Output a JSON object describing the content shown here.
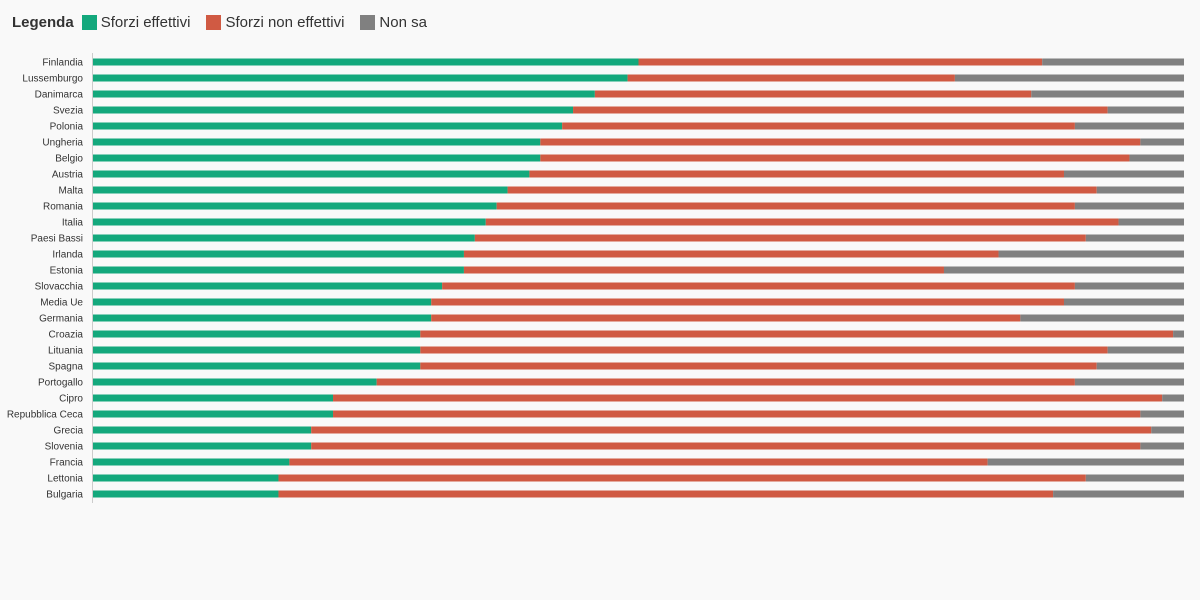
{
  "legend": {
    "title": "Legenda",
    "items": [
      {
        "label": "Sforzi effettivi",
        "color": "#13a87c"
      },
      {
        "label": "Sforzi non effettivi",
        "color": "#d05a43"
      },
      {
        "label": "Non sa",
        "color": "#808080"
      }
    ]
  },
  "chart_data": {
    "type": "bar",
    "orientation": "horizontal",
    "stacked": true,
    "xlim": [
      0,
      100
    ],
    "categories": [
      "Finlandia",
      "Lussemburgo",
      "Danimarca",
      "Svezia",
      "Polonia",
      "Ungheria",
      "Belgio",
      "Austria",
      "Malta",
      "Romania",
      "Italia",
      "Paesi Bassi",
      "Irlanda",
      "Estonia",
      "Slovacchia",
      "Media Ue",
      "Germania",
      "Croazia",
      "Lituania",
      "Spagna",
      "Portogallo",
      "Cipro",
      "Repubblica Ceca",
      "Grecia",
      "Slovenia",
      "Francia",
      "Lettonia",
      "Bulgaria"
    ],
    "series": [
      {
        "name": "Sforzi effettivi",
        "color": "#13a87c",
        "values": [
          50,
          49,
          46,
          44,
          43,
          41,
          41,
          40,
          38,
          37,
          36,
          35,
          34,
          34,
          32,
          31,
          31,
          30,
          30,
          30,
          26,
          22,
          22,
          20,
          20,
          18,
          17,
          17
        ]
      },
      {
        "name": "Sforzi non effettivi",
        "color": "#d05a43",
        "values": [
          37,
          30,
          40,
          49,
          47,
          55,
          54,
          49,
          54,
          53,
          58,
          56,
          49,
          44,
          58,
          58,
          54,
          69,
          63,
          62,
          64,
          76,
          74,
          77,
          76,
          64,
          74,
          71
        ]
      },
      {
        "name": "Non sa",
        "color": "#808080",
        "values": [
          13,
          21,
          14,
          7,
          10,
          4,
          5,
          11,
          8,
          10,
          6,
          9,
          17,
          22,
          10,
          11,
          15,
          1,
          7,
          8,
          10,
          2,
          4,
          3,
          4,
          18,
          9,
          12
        ]
      }
    ]
  }
}
